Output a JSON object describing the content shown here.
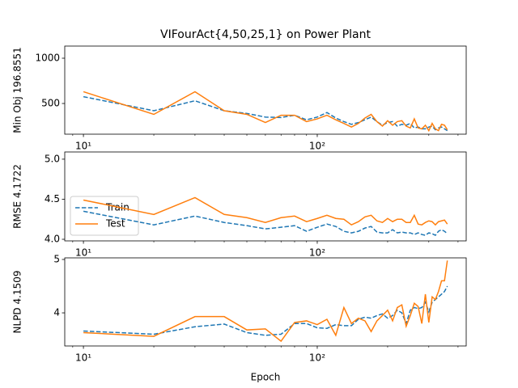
{
  "chart_data": [
    {
      "type": "line",
      "title": "VIFourAct{4,50,25,1} on Power Plant",
      "ylabel": "Min Obj 196.8551",
      "xscale": "log",
      "x": [
        10,
        20,
        30,
        40,
        50,
        60,
        70,
        80,
        90,
        100,
        110,
        120,
        130,
        140,
        150,
        160,
        170,
        180,
        190,
        200,
        210,
        220,
        230,
        240,
        250,
        260,
        270,
        280,
        290,
        300,
        310,
        320,
        330,
        340,
        350,
        360
      ],
      "xlim": [
        8.32,
        433.5
      ],
      "xticks": [
        {
          "value": 10,
          "label": "10¹"
        },
        {
          "value": 100,
          "label": "10²"
        }
      ],
      "ylim": [
        161,
        1134
      ],
      "yticks": [
        500,
        1000
      ],
      "series": [
        {
          "color": "#1f77b4",
          "linestyle": "dashed",
          "values": [
            575,
            420,
            530,
            420,
            390,
            350,
            345,
            370,
            320,
            350,
            400,
            340,
            300,
            270,
            290,
            320,
            350,
            300,
            260,
            290,
            300,
            250,
            270,
            260,
            280,
            230,
            240,
            220,
            220,
            240,
            250,
            210,
            230,
            240,
            220,
            200
          ]
        },
        {
          "color": "#ff7f0e",
          "linestyle": "solid",
          "values": [
            630,
            380,
            630,
            420,
            380,
            290,
            370,
            370,
            300,
            330,
            370,
            320,
            280,
            240,
            280,
            340,
            380,
            300,
            250,
            310,
            260,
            300,
            310,
            250,
            230,
            330,
            230,
            220,
            260,
            200,
            280,
            220,
            200,
            270,
            260,
            210
          ]
        }
      ]
    },
    {
      "type": "line",
      "ylabel": "RMSE 4.1722",
      "xscale": "log",
      "legend": "lower left",
      "x": [
        10,
        20,
        30,
        40,
        50,
        60,
        70,
        80,
        90,
        100,
        110,
        120,
        130,
        140,
        150,
        160,
        170,
        180,
        190,
        200,
        210,
        220,
        230,
        240,
        250,
        260,
        270,
        280,
        290,
        300,
        310,
        320,
        330,
        340,
        350,
        360
      ],
      "xlim": [
        8.32,
        433.5
      ],
      "xticks": [
        {
          "value": 10,
          "label": "10¹"
        },
        {
          "value": 100,
          "label": "10²"
        }
      ],
      "ylim": [
        3.98,
        5.09
      ],
      "yticks": [
        {
          "value": 4.0,
          "label": "4.0"
        },
        {
          "value": 4.5,
          "label": "4.5"
        },
        {
          "value": 5.0,
          "label": "5.0"
        }
      ],
      "series": [
        {
          "name": "Train",
          "color": "#1f77b4",
          "linestyle": "dashed",
          "values": [
            4.35,
            4.18,
            4.29,
            4.21,
            4.17,
            4.13,
            4.15,
            4.17,
            4.1,
            4.15,
            4.19,
            4.16,
            4.1,
            4.08,
            4.1,
            4.14,
            4.16,
            4.09,
            4.08,
            4.08,
            4.12,
            4.08,
            4.09,
            4.08,
            4.08,
            4.06,
            4.08,
            4.06,
            4.05,
            4.08,
            4.07,
            4.05,
            4.1,
            4.12,
            4.1,
            4.07
          ]
        },
        {
          "name": "Test",
          "color": "#ff7f0e",
          "linestyle": "solid",
          "values": [
            4.49,
            4.31,
            4.52,
            4.31,
            4.27,
            4.21,
            4.27,
            4.29,
            4.22,
            4.26,
            4.3,
            4.26,
            4.25,
            4.18,
            4.22,
            4.28,
            4.3,
            4.23,
            4.21,
            4.26,
            4.22,
            4.25,
            4.25,
            4.21,
            4.21,
            4.3,
            4.19,
            4.18,
            4.21,
            4.23,
            4.22,
            4.18,
            4.22,
            4.23,
            4.24,
            4.19
          ]
        }
      ]
    },
    {
      "type": "line",
      "ylabel": "NLPD 4.1509",
      "xlabel": "Epoch",
      "xscale": "log",
      "x": [
        10,
        20,
        30,
        40,
        50,
        60,
        70,
        80,
        90,
        100,
        110,
        120,
        130,
        140,
        150,
        160,
        170,
        180,
        190,
        200,
        210,
        220,
        230,
        240,
        250,
        260,
        270,
        280,
        290,
        300,
        310,
        320,
        330,
        340,
        350,
        360
      ],
      "xlim": [
        8.32,
        433.5
      ],
      "xticks": [
        {
          "value": 10,
          "label": "10¹"
        },
        {
          "value": 100,
          "label": "10²"
        }
      ],
      "ylim": [
        3.38,
        5.03
      ],
      "yticks": [
        4,
        5
      ],
      "series": [
        {
          "color": "#1f77b4",
          "linestyle": "dashed",
          "values": [
            3.66,
            3.6,
            3.74,
            3.79,
            3.63,
            3.58,
            3.6,
            3.8,
            3.8,
            3.72,
            3.71,
            3.78,
            3.76,
            3.76,
            3.88,
            3.92,
            3.9,
            3.95,
            3.98,
            3.9,
            3.95,
            4.05,
            4.0,
            3.8,
            4.05,
            4.1,
            4.08,
            4.1,
            4.2,
            4.02,
            4.2,
            4.25,
            4.3,
            4.35,
            4.4,
            4.5
          ]
        },
        {
          "color": "#ff7f0e",
          "linestyle": "solid",
          "values": [
            3.63,
            3.56,
            3.93,
            3.93,
            3.68,
            3.7,
            3.47,
            3.82,
            3.85,
            3.78,
            3.88,
            3.58,
            4.1,
            3.8,
            3.9,
            3.85,
            3.65,
            3.85,
            3.95,
            4.05,
            3.85,
            4.1,
            4.15,
            3.75,
            3.95,
            4.18,
            4.12,
            3.8,
            4.35,
            3.82,
            4.3,
            4.25,
            4.4,
            4.6,
            4.6,
            4.98
          ]
        }
      ]
    }
  ]
}
